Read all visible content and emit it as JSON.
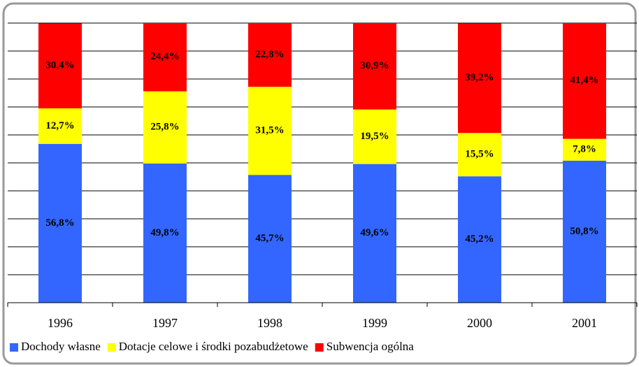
{
  "chart_data": {
    "type": "stacked_bar",
    "categories": [
      "1996",
      "1997",
      "1998",
      "1999",
      "2000",
      "2001"
    ],
    "series": [
      {
        "name": "Dochody własne",
        "color": "#3366ff",
        "values": [
          56.8,
          49.8,
          45.7,
          49.6,
          45.2,
          50.8
        ],
        "value_labels": [
          "56,8%",
          "49,8%",
          "45,7%",
          "49,6%",
          "45,2%",
          "50,8%"
        ]
      },
      {
        "name": "Dotacje celowe i środki pozabudżetowe",
        "color": "#ffff00",
        "values": [
          12.7,
          25.8,
          31.5,
          19.5,
          15.5,
          7.8
        ],
        "value_labels": [
          "12,7%",
          "25,8%",
          "31,5%",
          "19,5%",
          "15,5%",
          "7,8%"
        ]
      },
      {
        "name": "Subwencja ogólna",
        "color": "#ff0000",
        "values": [
          30.4,
          24.4,
          22.8,
          30.9,
          39.2,
          41.4
        ],
        "value_labels": [
          "30,4%",
          "24,4%",
          "22,8%",
          "30,9%",
          "39,2%",
          "41,4%"
        ]
      }
    ],
    "ylim": [
      0,
      100
    ],
    "yticks": [
      0,
      10,
      20,
      30,
      40,
      50,
      60,
      70,
      80,
      90,
      100
    ],
    "grid": true,
    "legend": "bottom"
  }
}
